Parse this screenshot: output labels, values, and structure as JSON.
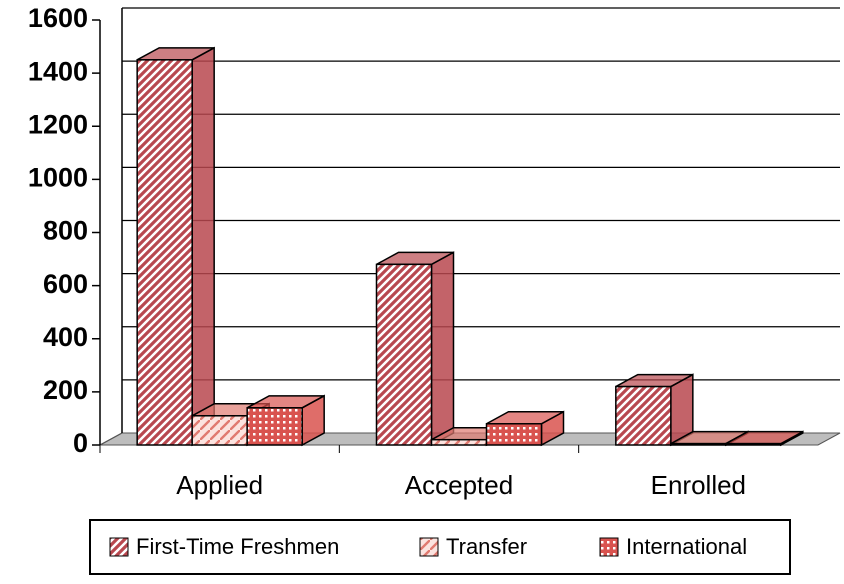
{
  "chart_data": {
    "type": "bar3d",
    "categories": [
      "Applied",
      "Accepted",
      "Enrolled"
    ],
    "series": [
      {
        "name": "First-Time Freshmen",
        "color": "#b8484f",
        "values": [
          1450,
          680,
          220
        ]
      },
      {
        "name": "Transfer",
        "color": "#e07a70",
        "values": [
          110,
          20,
          5
        ]
      },
      {
        "name": "International",
        "color": "#d9534f",
        "values": [
          140,
          80,
          5
        ]
      }
    ],
    "ylim": [
      0,
      1600
    ],
    "yticks": [
      0,
      200,
      400,
      600,
      800,
      1000,
      1200,
      1400,
      1600
    ],
    "grid": true,
    "legend": "bottom"
  }
}
